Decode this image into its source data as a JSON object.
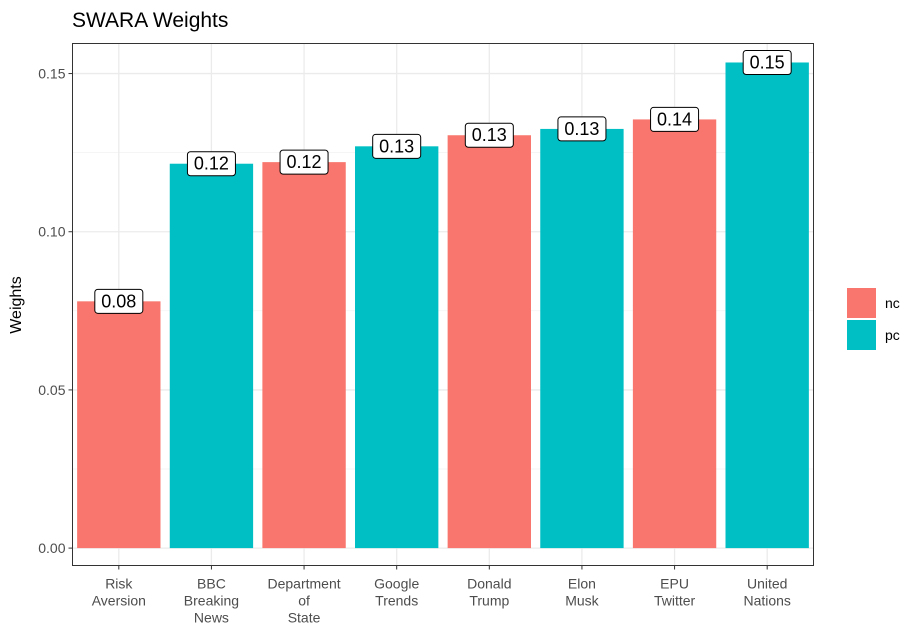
{
  "chart_data": {
    "type": "bar",
    "title": "SWARA Weights",
    "xlabel": "",
    "ylabel": "Weights",
    "ylim": [
      -0.0055,
      0.1595
    ],
    "yticks": [
      0.0,
      0.05,
      0.1,
      0.15
    ],
    "ytick_labels": [
      "0.00",
      "0.05",
      "0.10",
      "0.15"
    ],
    "grid": true,
    "legend_position": "right",
    "categories": [
      [
        "Risk",
        "Aversion"
      ],
      [
        "BBC",
        "Breaking",
        "News"
      ],
      [
        "Department",
        "of",
        "State"
      ],
      [
        "Google",
        "Trends"
      ],
      [
        "Donald",
        "Trump"
      ],
      [
        "Elon",
        "Musk"
      ],
      [
        "EPU",
        "Twitter"
      ],
      [
        "United",
        "Nations"
      ]
    ],
    "values": [
      0.078,
      0.1215,
      0.122,
      0.127,
      0.1305,
      0.1325,
      0.1355,
      0.1535
    ],
    "groups": [
      "nc",
      "pc",
      "nc",
      "pc",
      "nc",
      "pc",
      "nc",
      "pc"
    ],
    "data_labels": [
      "0.08",
      "0.12",
      "0.12",
      "0.13",
      "0.13",
      "0.13",
      "0.14",
      "0.15"
    ],
    "legend": [
      {
        "name": "nc",
        "color": "#F8766D"
      },
      {
        "name": "pc",
        "color": "#00BFC4"
      }
    ]
  }
}
